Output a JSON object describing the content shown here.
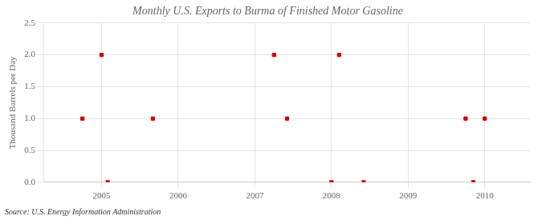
{
  "chart_data": {
    "type": "scatter",
    "title": "Monthly U.S. Exports to Burma of Finished Motor Gasoline",
    "y_label": "Thousand Barrels per Day",
    "annotation": "Source: U.S. Energy Information Administration",
    "x": [
      2004.75,
      2005.0,
      2005.08,
      2005.67,
      2007.25,
      2007.42,
      2008.0,
      2008.1,
      2008.42,
      2009.75,
      2009.85,
      2010.0
    ],
    "values": [
      1.0,
      2.0,
      0.0,
      1.0,
      2.0,
      1.0,
      0.0,
      2.0,
      0.0,
      1.0,
      0.0,
      1.0
    ],
    "color": "#cc0000",
    "marker": "square",
    "xlim": [
      2004.25,
      2010.6
    ],
    "ylim": [
      0.0,
      2.5
    ],
    "xticks": [
      2005,
      2006,
      2007,
      2008,
      2009,
      2010
    ],
    "yticks": [
      {
        "value": 0,
        "label": "0.0"
      },
      0.5,
      {
        "value": 1,
        "label": "1.0"
      },
      1.5,
      {
        "value": 2,
        "label": "2.0"
      },
      2.5
    ],
    "grid": true
  }
}
